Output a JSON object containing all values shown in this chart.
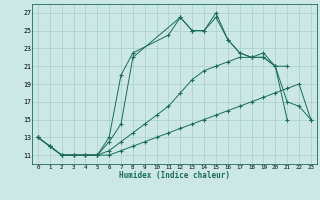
{
  "xlabel": "Humidex (Indice chaleur)",
  "bg_color": "#cce8e6",
  "line_color": "#1a6b5a",
  "grid_color": "#aacfcc",
  "xlim_min": -0.5,
  "xlim_max": 23.5,
  "ylim_min": 10.0,
  "ylim_max": 28.0,
  "xticks": [
    0,
    1,
    2,
    3,
    4,
    5,
    6,
    7,
    8,
    9,
    10,
    11,
    12,
    13,
    14,
    15,
    16,
    17,
    18,
    19,
    20,
    21,
    22,
    23
  ],
  "yticks": [
    11,
    13,
    15,
    17,
    19,
    21,
    23,
    25,
    27
  ],
  "series": [
    {
      "x": [
        0,
        1,
        2,
        3,
        4,
        5,
        6,
        7,
        8,
        9,
        10,
        11,
        12,
        13,
        14,
        15,
        16,
        17,
        18,
        19,
        20,
        21,
        22,
        23
      ],
      "y": [
        13.0,
        12.0,
        11.0,
        11.0,
        11.0,
        11.0,
        11.0,
        11.5,
        12.0,
        12.5,
        13.0,
        13.5,
        14.0,
        14.5,
        15.0,
        15.5,
        16.0,
        16.5,
        17.0,
        17.5,
        18.0,
        18.5,
        19.0,
        15.0
      ]
    },
    {
      "x": [
        0,
        1,
        2,
        3,
        4,
        5,
        6,
        7,
        8,
        9,
        10,
        11,
        12,
        13,
        14,
        15,
        16,
        17,
        18,
        19,
        20,
        21,
        22,
        23
      ],
      "y": [
        13.0,
        12.0,
        11.0,
        11.0,
        11.0,
        11.0,
        11.5,
        12.5,
        13.5,
        14.5,
        15.5,
        16.5,
        18.0,
        19.5,
        20.5,
        21.0,
        21.5,
        22.0,
        22.0,
        22.5,
        21.0,
        17.0,
        16.5,
        15.0
      ]
    },
    {
      "x": [
        0,
        1,
        2,
        3,
        4,
        5,
        6,
        7,
        8,
        12,
        13,
        14,
        15,
        16,
        17,
        18,
        19,
        20,
        21
      ],
      "y": [
        13.0,
        12.0,
        11.0,
        11.0,
        11.0,
        11.0,
        12.5,
        14.5,
        22.0,
        26.5,
        25.0,
        25.0,
        26.5,
        24.0,
        22.5,
        22.0,
        22.0,
        21.0,
        21.0
      ]
    },
    {
      "x": [
        0,
        1,
        2,
        3,
        4,
        5,
        6,
        7,
        8,
        11,
        12,
        13,
        14,
        15,
        16,
        17,
        18,
        19,
        20,
        21
      ],
      "y": [
        13.0,
        12.0,
        11.0,
        11.0,
        11.0,
        11.0,
        13.0,
        20.0,
        22.5,
        24.5,
        26.5,
        25.0,
        25.0,
        27.0,
        24.0,
        22.5,
        22.0,
        22.0,
        21.0,
        15.0
      ]
    }
  ]
}
